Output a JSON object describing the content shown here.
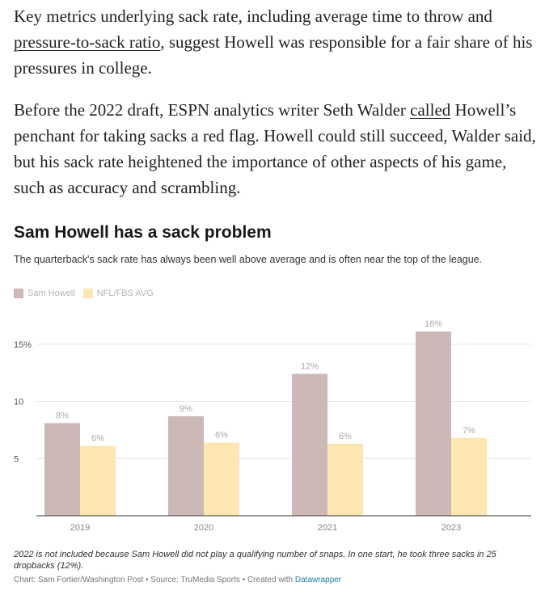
{
  "article": {
    "p1_before": "Key metrics underlying sack rate, including average time to throw and ",
    "p1_link": "pressure-to-sack ratio",
    "p1_after": ", suggest Howell was responsible for a fair share of his pressures in college.",
    "p2_before": "Before the 2022 draft, ESPN analytics writer Seth Walder ",
    "p2_link": "called",
    "p2_after": " Howell’s penchant for taking sacks a red flag. Howell could still succeed, Walder said, but his sack rate heightened the importance of other aspects of his game, such as accuracy and scrambling."
  },
  "colors": {
    "sam_howell": "#ccb8b7",
    "avg": "#fde6b1",
    "grid": "#e6e6e6",
    "axis": "#333333",
    "label": "#aaaaaa"
  },
  "chart_data": {
    "type": "bar",
    "title": "Sam Howell has a sack problem",
    "subtitle": "The quarterback's sack rate has always been well above average and is often near the top of the league.",
    "categories": [
      "2019",
      "2020",
      "2021",
      "2023"
    ],
    "series": [
      {
        "name": "Sam Howell",
        "values": [
          8.1,
          8.7,
          12.4,
          16.1
        ],
        "labels": [
          "8%",
          "9%",
          "12%",
          "16%"
        ]
      },
      {
        "name": "NFL/FBS AVG",
        "values": [
          6.1,
          6.4,
          6.3,
          6.8
        ],
        "labels": [
          "6%",
          "6%",
          "6%",
          "7%"
        ]
      }
    ],
    "ylim": [
      0,
      17
    ],
    "yticks": [
      5,
      10,
      15
    ],
    "ytick_labels": [
      "5",
      "10",
      "15%"
    ],
    "grid": true,
    "legend": "top-left",
    "xlabel": "",
    "ylabel": ""
  },
  "footer": {
    "note": "2022 is not included because Sam Howell did not play a qualifying number of snaps. In one start, he took three sacks in 25 dropbacks (12%).",
    "credit": "Chart: Sam Fortier/Washington Post • Source: TruMedia Sports • Created with ",
    "credit_link": "Datawrapper"
  }
}
